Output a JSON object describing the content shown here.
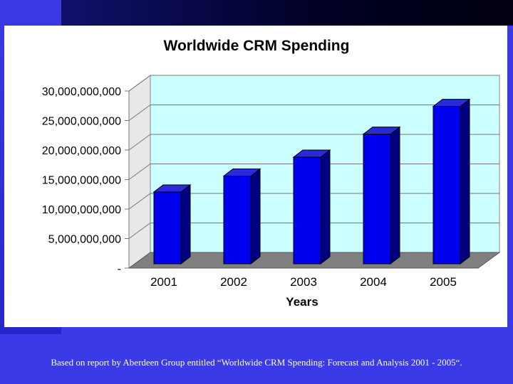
{
  "chart_data": {
    "type": "bar",
    "title": "Worldwide CRM Spending",
    "xlabel": "Years",
    "ylabel": "",
    "categories": [
      "2001",
      "2002",
      "2003",
      "2004",
      "2005"
    ],
    "values": [
      13500000000,
      16200000000,
      19400000000,
      23300000000,
      28000000000
    ],
    "ylim": [
      0,
      30000000000
    ],
    "yticks": [
      {
        "value": 0,
        "label": "-"
      },
      {
        "value": 5000000000,
        "label": "5,000,000,000"
      },
      {
        "value": 10000000000,
        "label": "10,000,000,000"
      },
      {
        "value": 15000000000,
        "label": "15,000,000,000"
      },
      {
        "value": 20000000000,
        "label": "20,000,000,000"
      },
      {
        "value": 25000000000,
        "label": "25,000,000,000"
      },
      {
        "value": 30000000000,
        "label": "30,000,000,000"
      }
    ],
    "grid": true,
    "colors": {
      "bar_front": "#0000f0",
      "bar_side": "#000080",
      "bar_top": "#2a2ad8",
      "plot_back": "#ccffff",
      "floor": "#808080"
    }
  },
  "caption": "Based on report by Aberdeen Group entitled “Worldwide CRM Spending: Forecast and Analysis 2001 - 2005“."
}
